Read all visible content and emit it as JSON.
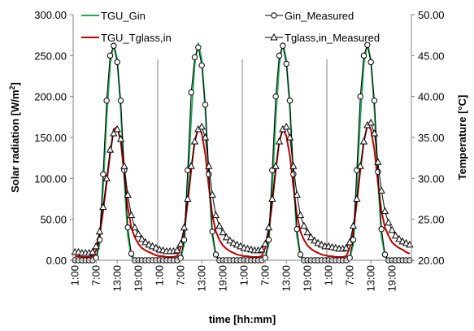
{
  "chart_data": {
    "type": "line",
    "xlabel": "time [hh:mm]",
    "ylabel_left": "Solar radiation [W/m²]",
    "ylabel_left_main": "Solar radiation [W/m",
    "ylabel_left_sup": "2",
    "ylabel_left_tail": "]",
    "ylabel_right": "Temperature [°C]",
    "ylim_left": [
      0,
      300
    ],
    "ylim_right": [
      20,
      50
    ],
    "yticks_left": [
      "0.00",
      "50.00",
      "100.00",
      "150.00",
      "200.00",
      "250.00",
      "300.00"
    ],
    "yticks_right": [
      "20.00",
      "25.00",
      "30.00",
      "35.00",
      "40.00",
      "45.00",
      "50.00"
    ],
    "xtick_labels": [
      "1:00",
      "7:00",
      "13:00",
      "19:00"
    ],
    "days": 4,
    "hours_per_day": 24,
    "grid": false,
    "legend": [
      "TGU_Gin",
      "TGU_Tglass,in",
      "Gin_Measured",
      "Tglass,in_Measured"
    ],
    "series": [
      {
        "name": "TGU_Gin",
        "axis": "left",
        "color": "#1faa55",
        "marker": "none",
        "values_per_day": [
          [
            0,
            0,
            0,
            0,
            0,
            0,
            2,
            20,
            90,
            175,
            240,
            265,
            245,
            185,
            100,
            30,
            5,
            0,
            0,
            0,
            0,
            0,
            0,
            0
          ],
          [
            0,
            0,
            0,
            0,
            0,
            0,
            2,
            20,
            90,
            175,
            240,
            265,
            245,
            185,
            100,
            30,
            5,
            0,
            0,
            0,
            0,
            0,
            0,
            0
          ],
          [
            0,
            0,
            0,
            0,
            0,
            0,
            2,
            20,
            90,
            175,
            240,
            265,
            245,
            185,
            100,
            30,
            5,
            0,
            0,
            0,
            0,
            0,
            0,
            0
          ],
          [
            0,
            0,
            0,
            0,
            0,
            0,
            2,
            20,
            90,
            175,
            240,
            265,
            245,
            185,
            100,
            30,
            5,
            0,
            0,
            0,
            0,
            0,
            0,
            0
          ]
        ]
      },
      {
        "name": "TGU_Tglass,in",
        "axis": "right",
        "color": "#c00000",
        "marker": "none",
        "values_per_day": [
          [
            20.5,
            20.5,
            20.4,
            20.4,
            20.4,
            20.5,
            21.2,
            23.0,
            26.0,
            29.5,
            33.0,
            36.0,
            36.3,
            34.5,
            30.5,
            26.5,
            24.0,
            22.8,
            22.0,
            21.5,
            21.2,
            21.0,
            20.8,
            20.6
          ],
          [
            20.5,
            20.5,
            20.4,
            20.4,
            20.4,
            20.5,
            21.5,
            23.5,
            27.0,
            31.0,
            34.5,
            36.2,
            35.5,
            33.0,
            29.0,
            25.5,
            23.5,
            22.5,
            21.8,
            21.4,
            21.1,
            20.9,
            20.7,
            20.6
          ],
          [
            20.5,
            20.5,
            20.4,
            20.4,
            20.4,
            20.5,
            21.5,
            23.5,
            27.0,
            31.0,
            34.5,
            36.0,
            35.2,
            32.8,
            29.0,
            25.5,
            23.5,
            22.5,
            21.8,
            21.4,
            21.1,
            20.9,
            20.7,
            20.6
          ],
          [
            20.5,
            20.5,
            20.4,
            20.4,
            20.4,
            20.5,
            21.5,
            23.5,
            27.0,
            31.0,
            34.5,
            36.5,
            36.0,
            33.5,
            29.5,
            26.0,
            24.0,
            23.0,
            22.2,
            21.8,
            21.5,
            21.3,
            21.0,
            20.8
          ]
        ]
      },
      {
        "name": "Gin_Measured",
        "axis": "left",
        "color": "#000000",
        "marker": "circle",
        "values_per_day": [
          [
            0,
            0,
            0,
            0,
            0,
            0,
            3,
            25,
            105,
            195,
            250,
            262,
            242,
            195,
            110,
            40,
            8,
            0,
            0,
            0,
            0,
            0,
            0,
            0
          ],
          [
            0,
            0,
            0,
            0,
            0,
            0,
            3,
            25,
            110,
            205,
            248,
            260,
            238,
            190,
            105,
            35,
            7,
            0,
            0,
            0,
            0,
            0,
            0,
            0
          ],
          [
            0,
            0,
            0,
            0,
            0,
            0,
            3,
            25,
            110,
            200,
            250,
            262,
            240,
            195,
            105,
            38,
            7,
            0,
            0,
            0,
            0,
            0,
            0,
            0
          ],
          [
            0,
            0,
            0,
            0,
            0,
            0,
            3,
            25,
            110,
            200,
            250,
            263,
            242,
            195,
            108,
            38,
            7,
            0,
            0,
            0,
            0,
            0,
            0,
            0
          ]
        ]
      },
      {
        "name": "Tglass,in_Measured",
        "axis": "right",
        "color": "#000000",
        "marker": "triangle",
        "values_per_day": [
          [
            21.0,
            21.0,
            20.9,
            20.9,
            20.9,
            21.0,
            21.7,
            23.5,
            26.5,
            30.0,
            33.5,
            35.5,
            36.0,
            34.8,
            31.5,
            28.0,
            25.5,
            24.0,
            23.2,
            22.6,
            22.2,
            21.9,
            21.7,
            21.5
          ],
          [
            21.3,
            21.2,
            21.1,
            21.1,
            21.1,
            21.2,
            22.0,
            24.0,
            27.5,
            31.5,
            34.5,
            36.0,
            36.3,
            35.0,
            31.5,
            28.0,
            25.5,
            24.2,
            23.4,
            22.8,
            22.4,
            22.1,
            21.9,
            21.7
          ],
          [
            21.5,
            21.4,
            21.3,
            21.2,
            21.2,
            21.3,
            22.0,
            24.0,
            27.5,
            31.5,
            34.5,
            36.0,
            36.3,
            35.0,
            31.5,
            28.0,
            25.5,
            24.2,
            23.4,
            22.8,
            22.4,
            22.1,
            21.9,
            21.7
          ],
          [
            21.7,
            21.6,
            21.5,
            21.4,
            21.4,
            21.5,
            22.2,
            24.2,
            27.5,
            31.5,
            34.5,
            36.5,
            36.8,
            35.5,
            32.0,
            28.5,
            26.0,
            24.6,
            23.7,
            23.0,
            22.6,
            22.3,
            22.1,
            21.9
          ]
        ]
      }
    ]
  }
}
